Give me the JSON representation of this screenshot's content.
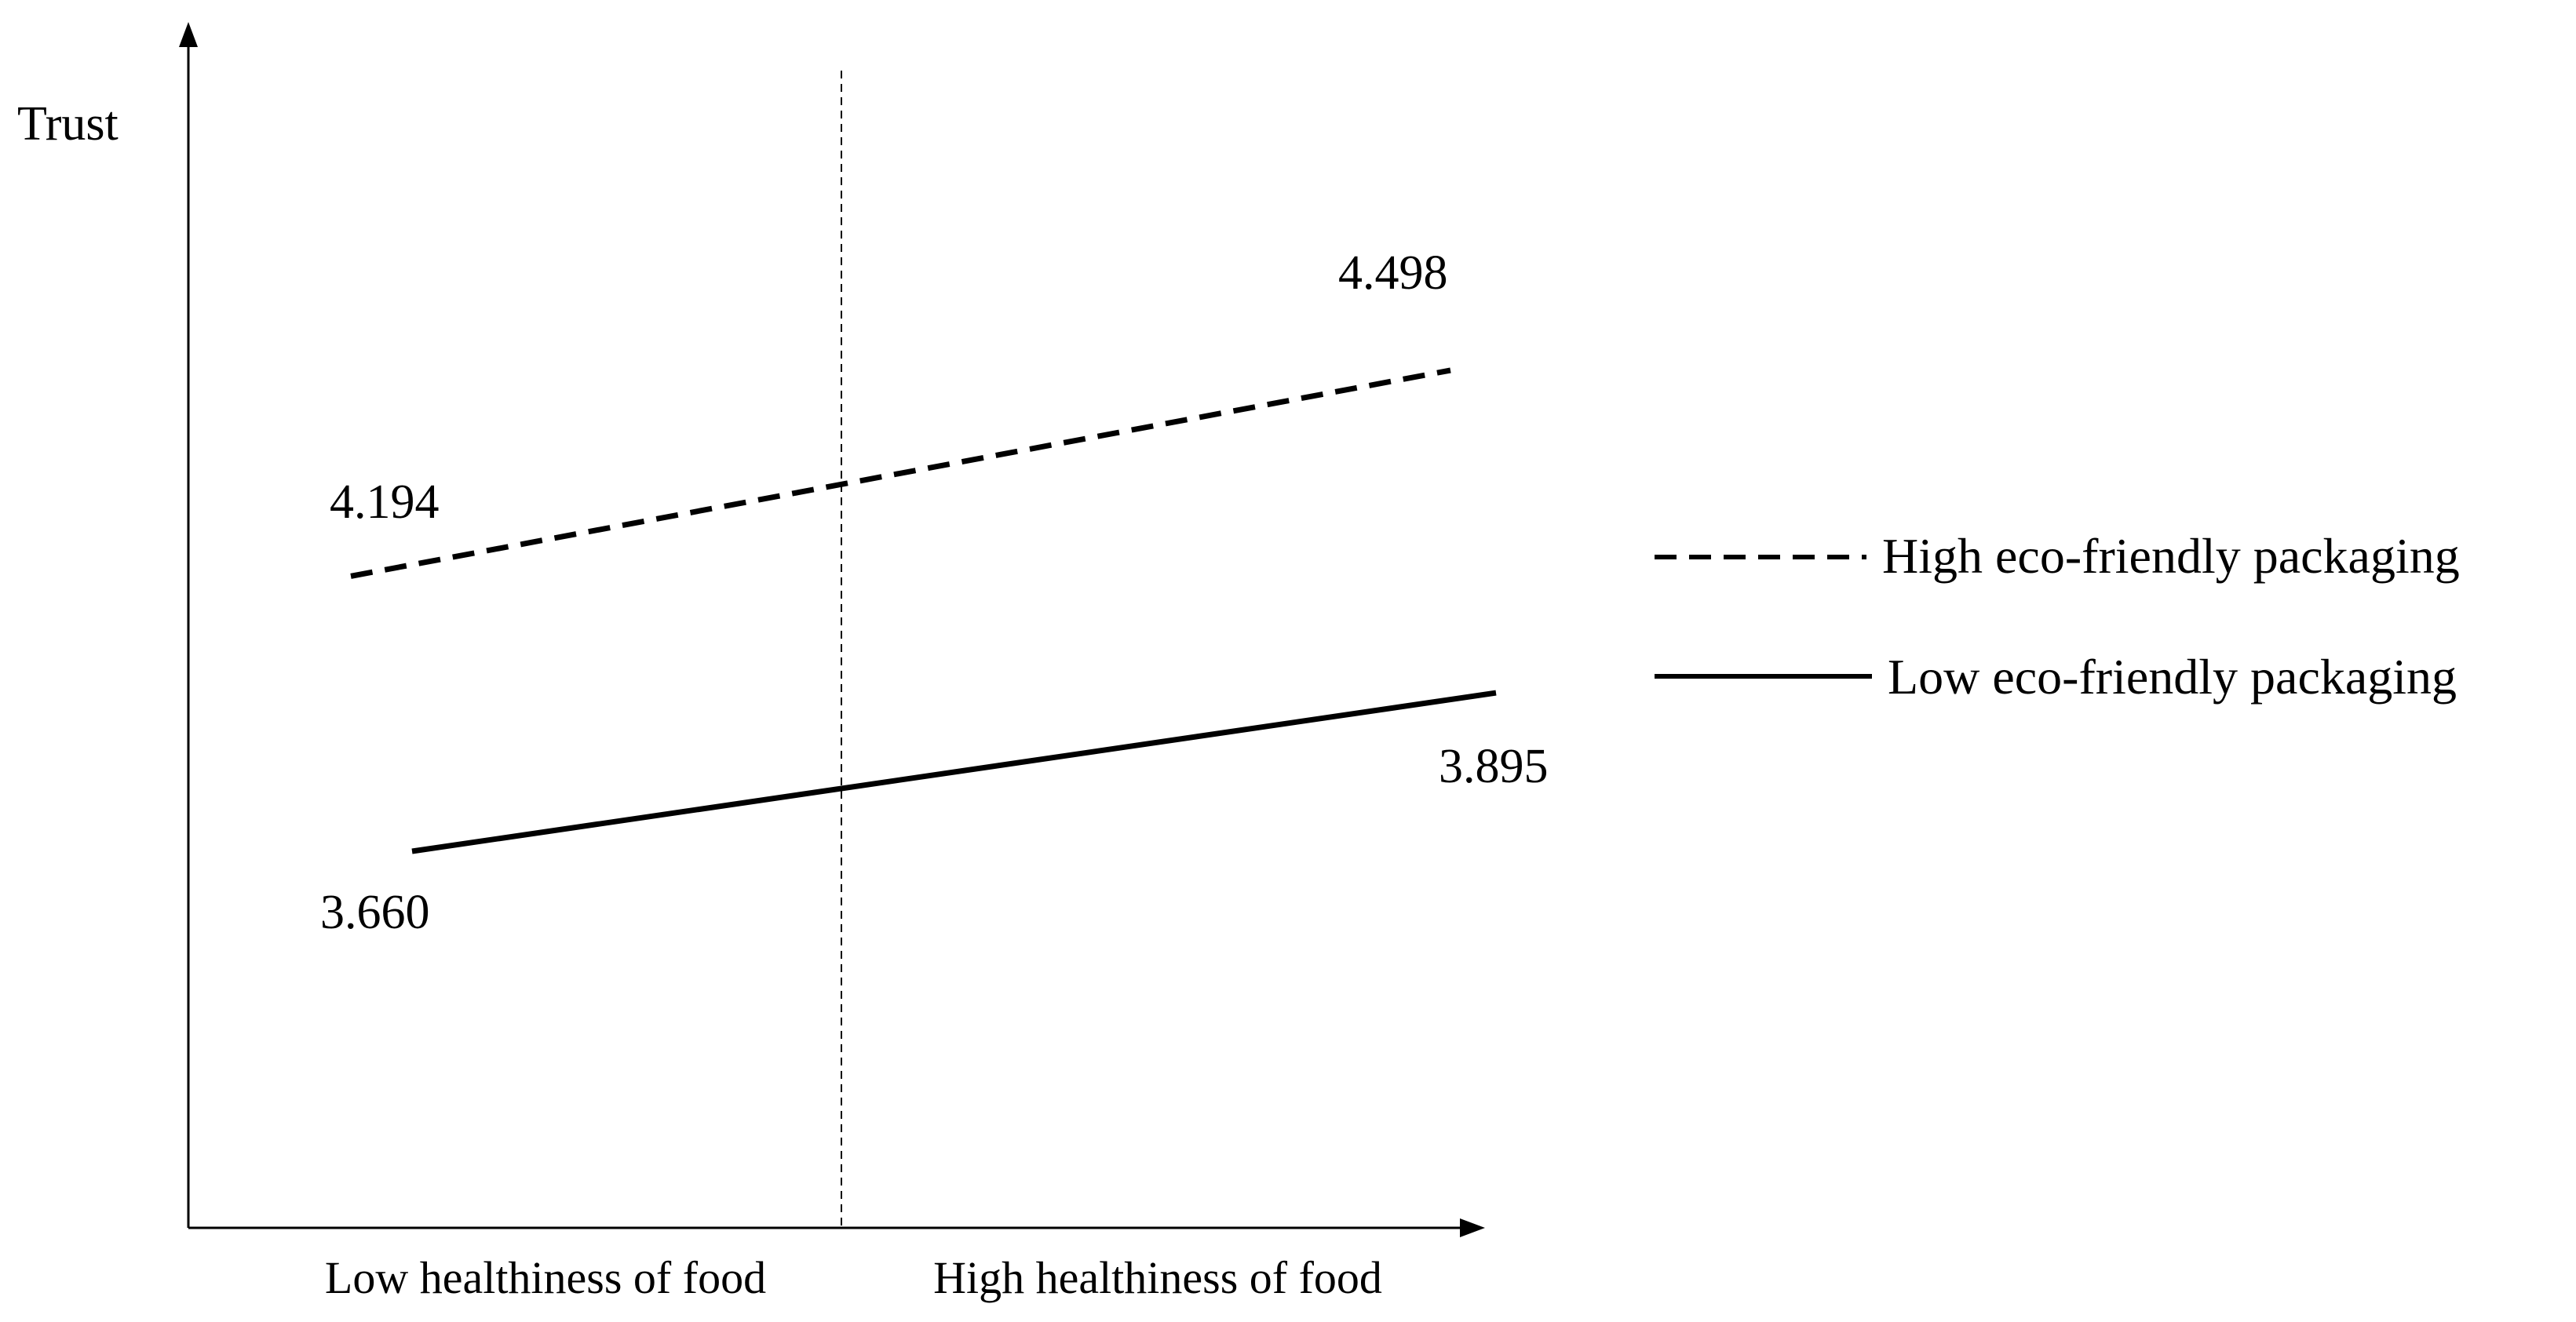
{
  "chart_data": {
    "type": "line",
    "title": "",
    "ylabel": "Trust",
    "xlabel": "",
    "categories": [
      "Low healthiness of food",
      "High healthiness of food"
    ],
    "series": [
      {
        "name": "High eco-friendly packaging",
        "style": "dashed",
        "values": [
          4.194,
          4.498
        ],
        "labels": [
          "4.194",
          "4.498"
        ]
      },
      {
        "name": "Low eco-friendly packaging",
        "style": "solid",
        "values": [
          3.66,
          3.895
        ],
        "labels": [
          "3.660",
          "3.895"
        ]
      }
    ],
    "legend_position": "right",
    "color": "#000000"
  }
}
